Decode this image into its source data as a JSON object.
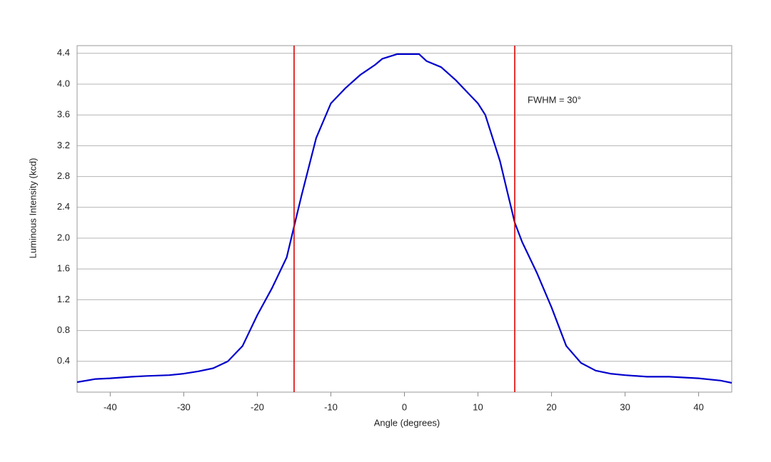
{
  "chart_data": {
    "type": "line",
    "x_label": "Angle (degrees)",
    "y_label": "Luminous Intensity (kcd)",
    "annotation": "FWHM = 30°",
    "x": [
      -44.5,
      -42,
      -40,
      -37,
      -35,
      -32,
      -30,
      -28,
      -26,
      -24,
      -22,
      -20,
      -18,
      -16,
      -15,
      -14,
      -12,
      -10,
      -8,
      -6,
      -4,
      -3,
      -1,
      0,
      2,
      3,
      5,
      7,
      9,
      10,
      11,
      13,
      14,
      15,
      16,
      18,
      20,
      22,
      24,
      26,
      28,
      30,
      33,
      36,
      40,
      43,
      44.5
    ],
    "values": [
      0.13,
      0.17,
      0.18,
      0.2,
      0.21,
      0.22,
      0.24,
      0.27,
      0.31,
      0.4,
      0.6,
      1.0,
      1.35,
      1.75,
      2.15,
      2.55,
      3.3,
      3.75,
      3.95,
      4.12,
      4.25,
      4.33,
      4.39,
      4.39,
      4.39,
      4.3,
      4.22,
      4.05,
      3.85,
      3.75,
      3.6,
      3.0,
      2.6,
      2.2,
      1.95,
      1.55,
      1.1,
      0.6,
      0.38,
      0.28,
      0.24,
      0.22,
      0.2,
      0.2,
      0.18,
      0.15,
      0.12
    ],
    "color": "#0000cc",
    "vlines": [
      -15,
      15
    ],
    "vline_color": "#dd0000",
    "xlim": [
      -44.5,
      44.5
    ],
    "ylim": [
      0,
      4.5
    ],
    "xticks": [
      -40,
      -30,
      -20,
      -10,
      0,
      10,
      20,
      30,
      40
    ],
    "yticks": [
      0.4,
      0.8,
      1.2,
      1.6,
      {
        "value": 2.0,
        "label": "2.0"
      },
      2.4,
      2.8,
      3.2,
      3.6,
      {
        "value": 4.0,
        "label": "4.0"
      },
      4.4
    ],
    "grid": true
  }
}
